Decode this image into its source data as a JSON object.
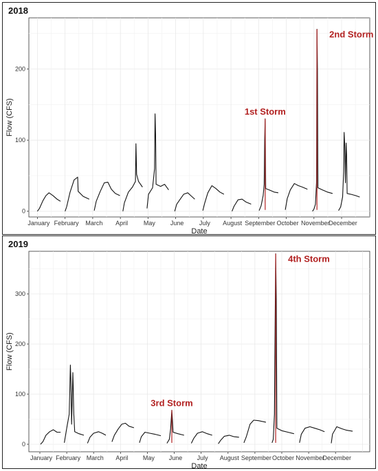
{
  "chart_data": [
    {
      "type": "line",
      "title": "2018",
      "xlabel": "Date",
      "ylabel": "Flow (CFS)",
      "ylim": [
        -8,
        272
      ],
      "yticks": [
        0,
        100,
        200
      ],
      "categories": [
        "January",
        "February",
        "March",
        "April",
        "May",
        "June",
        "July",
        "August",
        "September",
        "October",
        "November",
        "December"
      ],
      "grid": true,
      "storm_color": "#b22222",
      "series": [
        {
          "values": [
            [
              0.55,
              0
            ],
            [
              0.75,
              4
            ],
            [
              1.1,
              15
            ],
            [
              1.4,
              22
            ],
            [
              1.7,
              26
            ],
            [
              2.1,
              22
            ],
            [
              2.5,
              17
            ],
            [
              2.85,
              14
            ]
          ]
        },
        {
          "values": [
            [
              3.3,
              0
            ],
            [
              3.45,
              6
            ],
            [
              3.8,
              27
            ],
            [
              4.2,
              44
            ],
            [
              4.55,
              48
            ],
            [
              4.6,
              28
            ],
            [
              5.1,
              21
            ],
            [
              5.7,
              17
            ]
          ]
        },
        {
          "values": [
            [
              6.2,
              1
            ],
            [
              6.4,
              14
            ],
            [
              6.8,
              28
            ],
            [
              7.2,
              40
            ],
            [
              7.55,
              41
            ],
            [
              7.9,
              31
            ],
            [
              8.3,
              25
            ],
            [
              8.75,
              22
            ]
          ]
        },
        {
          "values": [
            [
              9.05,
              0
            ],
            [
              9.2,
              12
            ],
            [
              9.6,
              27
            ],
            [
              10.0,
              34
            ],
            [
              10.3,
              42
            ],
            [
              10.35,
              95
            ],
            [
              10.42,
              52
            ],
            [
              10.6,
              42
            ],
            [
              11.0,
              34
            ]
          ]
        },
        {
          "values": [
            [
              11.45,
              4
            ],
            [
              11.6,
              24
            ],
            [
              12.0,
              33
            ],
            [
              12.2,
              60
            ],
            [
              12.25,
              137
            ],
            [
              12.3,
              108
            ],
            [
              12.35,
              38
            ],
            [
              12.8,
              35
            ],
            [
              13.2,
              38
            ],
            [
              13.6,
              30
            ]
          ]
        },
        {
          "values": [
            [
              14.2,
              0
            ],
            [
              14.4,
              10
            ],
            [
              14.8,
              18
            ],
            [
              15.1,
              24
            ],
            [
              15.5,
              26
            ],
            [
              15.8,
              22
            ],
            [
              16.2,
              17
            ]
          ]
        },
        {
          "values": [
            [
              17.0,
              1
            ],
            [
              17.2,
              12
            ],
            [
              17.5,
              26
            ],
            [
              17.9,
              36
            ],
            [
              18.3,
              32
            ],
            [
              18.7,
              27
            ],
            [
              19.1,
              24
            ]
          ]
        },
        {
          "values": [
            [
              19.9,
              0
            ],
            [
              20.1,
              7
            ],
            [
              20.5,
              16
            ],
            [
              20.9,
              17
            ],
            [
              21.3,
              13
            ],
            [
              21.8,
              10
            ]
          ]
        },
        {
          "values": [
            [
              22.6,
              1
            ],
            [
              22.8,
              8
            ],
            [
              23.0,
              22
            ],
            [
              23.1,
              38
            ],
            [
              23.15,
              100
            ],
            [
              23.2,
              130
            ],
            [
              23.25,
              32
            ],
            [
              23.6,
              30
            ],
            [
              24.1,
              27
            ],
            [
              24.5,
              26
            ]
          ]
        },
        {
          "values": [
            [
              25.2,
              2
            ],
            [
              25.4,
              18
            ],
            [
              25.7,
              30
            ],
            [
              26.1,
              39
            ],
            [
              26.5,
              36
            ],
            [
              26.9,
              34
            ],
            [
              27.4,
              31
            ]
          ]
        },
        {
          "values": [
            [
              27.9,
              0
            ],
            [
              28.05,
              3
            ],
            [
              28.2,
              10
            ],
            [
              28.3,
              40
            ],
            [
              28.35,
              256
            ],
            [
              28.4,
              200
            ],
            [
              28.45,
              33
            ],
            [
              28.9,
              30
            ],
            [
              29.4,
              27
            ],
            [
              29.9,
              25
            ]
          ]
        },
        {
          "values": [
            [
              30.5,
              1
            ],
            [
              30.7,
              6
            ],
            [
              30.9,
              20
            ],
            [
              31.0,
              55
            ],
            [
              31.05,
              111
            ],
            [
              31.12,
              90
            ],
            [
              31.18,
              40
            ],
            [
              31.25,
              96
            ],
            [
              31.3,
              80
            ],
            [
              31.35,
              25
            ],
            [
              31.7,
              24
            ],
            [
              32.2,
              22
            ],
            [
              32.6,
              20
            ]
          ]
        }
      ],
      "storms": [
        {
          "label": "1st Storm",
          "x": 23.2,
          "y": 130
        },
        {
          "label": "2nd Storm",
          "x": 28.35,
          "y": 256
        }
      ]
    },
    {
      "type": "line",
      "title": "2019",
      "xlabel": "Date",
      "ylabel": "Flow (CFS)",
      "ylim": [
        -15,
        385
      ],
      "yticks": [
        0,
        100,
        200,
        300
      ],
      "categories": [
        "January",
        "February",
        "March",
        "April",
        "May",
        "June",
        "July",
        "August",
        "September",
        "October",
        "November",
        "December"
      ],
      "grid": true,
      "storm_color": "#b22222",
      "series": [
        {
          "values": [
            [
              0.65,
              0
            ],
            [
              0.85,
              5
            ],
            [
              1.1,
              18
            ],
            [
              1.4,
              25
            ],
            [
              1.7,
              29
            ],
            [
              2.0,
              24
            ],
            [
              2.3,
              24
            ]
          ]
        },
        {
          "values": [
            [
              2.6,
              3
            ],
            [
              2.75,
              25
            ],
            [
              3.0,
              60
            ],
            [
              3.1,
              158
            ],
            [
              3.15,
              120
            ],
            [
              3.2,
              40
            ],
            [
              3.3,
              143
            ],
            [
              3.38,
              60
            ],
            [
              3.45,
              25
            ],
            [
              3.8,
              21
            ],
            [
              4.2,
              18
            ]
          ]
        },
        {
          "values": [
            [
              4.5,
              2
            ],
            [
              4.7,
              14
            ],
            [
              5.0,
              22
            ],
            [
              5.4,
              25
            ],
            [
              5.7,
              22
            ],
            [
              6.0,
              18
            ]
          ]
        },
        {
          "values": [
            [
              6.5,
              5
            ],
            [
              6.7,
              18
            ],
            [
              7.0,
              30
            ],
            [
              7.3,
              40
            ],
            [
              7.6,
              42
            ],
            [
              7.9,
              36
            ],
            [
              8.3,
              33
            ]
          ]
        },
        {
          "values": [
            [
              8.75,
              3
            ],
            [
              8.9,
              15
            ],
            [
              9.2,
              24
            ],
            [
              9.6,
              22
            ],
            [
              10.0,
              20
            ],
            [
              10.5,
              17
            ]
          ]
        },
        {
          "values": [
            [
              11.0,
              2
            ],
            [
              11.2,
              10
            ],
            [
              11.3,
              30
            ],
            [
              11.4,
              68
            ],
            [
              11.45,
              48
            ],
            [
              11.5,
              24
            ],
            [
              11.9,
              21
            ],
            [
              12.4,
              18
            ]
          ]
        },
        {
          "values": [
            [
              13.0,
              2
            ],
            [
              13.2,
              12
            ],
            [
              13.5,
              22
            ],
            [
              13.9,
              25
            ],
            [
              14.3,
              21
            ],
            [
              14.7,
              18
            ]
          ]
        },
        {
          "values": [
            [
              15.2,
              1
            ],
            [
              15.4,
              8
            ],
            [
              15.7,
              16
            ],
            [
              16.1,
              18
            ],
            [
              16.5,
              15
            ],
            [
              16.9,
              14
            ]
          ]
        },
        {
          "values": [
            [
              17.3,
              3
            ],
            [
              17.5,
              15
            ],
            [
              17.8,
              40
            ],
            [
              18.1,
              48
            ],
            [
              18.5,
              47
            ],
            [
              18.9,
              45
            ],
            [
              19.1,
              44
            ]
          ]
        },
        {
          "values": [
            [
              19.6,
              3
            ],
            [
              19.7,
              10
            ],
            [
              19.8,
              60
            ],
            [
              19.9,
              380
            ],
            [
              19.95,
              290
            ],
            [
              20.0,
              32
            ],
            [
              20.4,
              27
            ],
            [
              20.9,
              24
            ],
            [
              21.4,
              21
            ]
          ]
        },
        {
          "values": [
            [
              21.85,
              3
            ],
            [
              22.0,
              20
            ],
            [
              22.3,
              32
            ],
            [
              22.7,
              35
            ],
            [
              23.1,
              32
            ],
            [
              23.5,
              29
            ],
            [
              23.9,
              25
            ]
          ]
        },
        {
          "values": [
            [
              24.45,
              2
            ],
            [
              24.55,
              20
            ],
            [
              24.9,
              35
            ],
            [
              25.3,
              31
            ],
            [
              25.7,
              28
            ],
            [
              26.2,
              26
            ]
          ]
        }
      ],
      "storms": [
        {
          "label": "3rd Storm",
          "x": 11.4,
          "y": 68
        },
        {
          "label": "4th Storm",
          "x": 19.9,
          "y": 380
        }
      ]
    }
  ]
}
